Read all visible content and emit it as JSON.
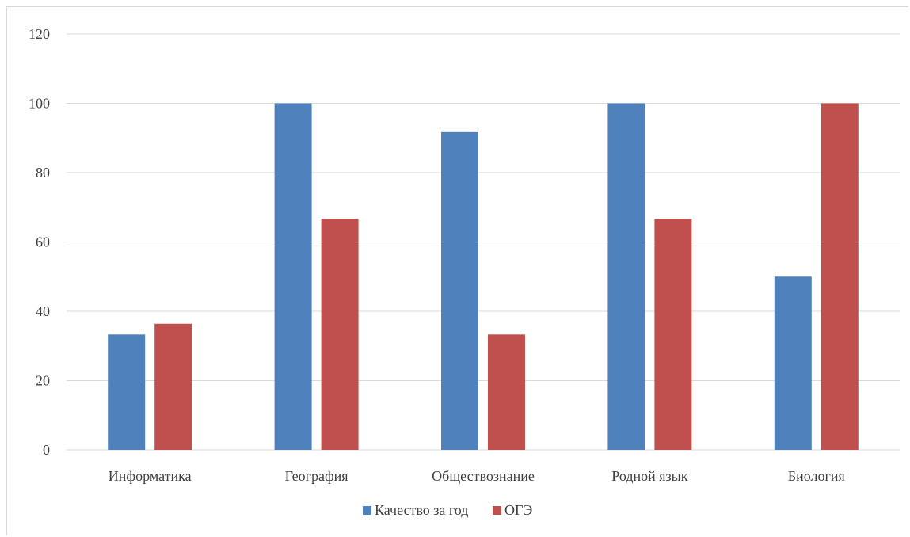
{
  "chart_data": {
    "type": "bar",
    "categories": [
      "Информатика",
      "География",
      "Обществознание",
      "Родной язык",
      "Биология"
    ],
    "series": [
      {
        "name": "Качество за год",
        "values": [
          33.3,
          100,
          91.7,
          100,
          50
        ],
        "color": "#4f81bd"
      },
      {
        "name": "ОГЭ",
        "values": [
          36.4,
          66.7,
          33.3,
          66.7,
          100
        ],
        "color": "#c0504d"
      }
    ],
    "ylim": [
      0,
      120
    ],
    "yticks": [
      "0",
      "20",
      "40",
      "60",
      "80",
      "100",
      "120"
    ],
    "grid": true,
    "legend_position": "bottom",
    "gridline_color": "#d9d9d9"
  }
}
